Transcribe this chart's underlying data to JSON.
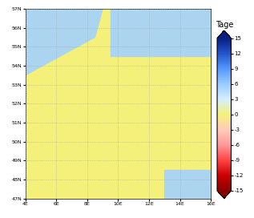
{
  "title": "Tage",
  "lon_min": 4,
  "lon_max": 16,
  "lat_min": 47,
  "lat_max": 57,
  "vmin": -15,
  "vmax": 15,
  "tick_values": [
    -15,
    -12,
    -9,
    -6,
    -3,
    0,
    3,
    6,
    9,
    12,
    15
  ],
  "grid_color": "#aaaaaa",
  "lon_ticks": [
    4,
    6,
    8,
    10,
    12,
    14,
    16
  ],
  "lat_ticks": [
    47,
    48,
    49,
    50,
    51,
    52,
    53,
    54,
    55,
    56,
    57
  ],
  "figsize": [
    3.17,
    2.72
  ],
  "dpi": 100,
  "land_color": "#f5f07a",
  "sea_color": "#aad4f0",
  "border_color": "#111111",
  "colormap_stops": [
    [
      0.0,
      "#8b0000"
    ],
    [
      0.1,
      "#cc0000"
    ],
    [
      0.2,
      "#ff4444"
    ],
    [
      0.3,
      "#ff9999"
    ],
    [
      0.4,
      "#ffccbb"
    ],
    [
      0.5,
      "#f5f07a"
    ],
    [
      0.6,
      "#d4eeff"
    ],
    [
      0.7,
      "#99ccff"
    ],
    [
      0.8,
      "#5599ff"
    ],
    [
      0.9,
      "#2255cc"
    ],
    [
      1.0,
      "#0a1f80"
    ]
  ]
}
